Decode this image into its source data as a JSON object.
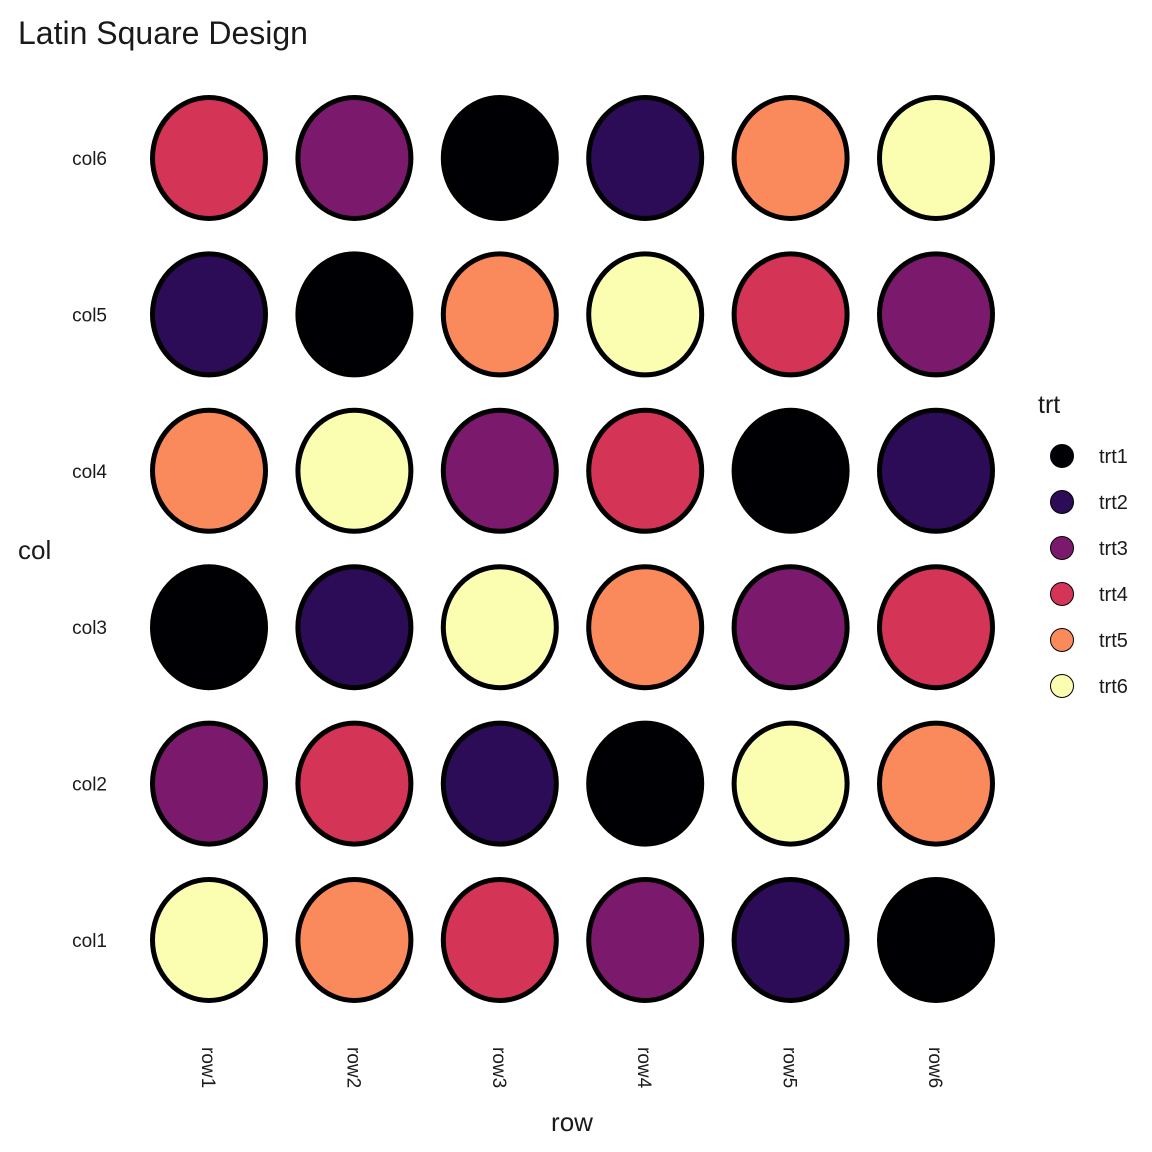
{
  "chart_data": {
    "type": "scatter",
    "title": "Latin Square Design",
    "xlabel": "row",
    "ylabel": "col",
    "x_categories": [
      "row1",
      "row2",
      "row3",
      "row4",
      "row5",
      "row6"
    ],
    "y_categories": [
      "col1",
      "col2",
      "col3",
      "col4",
      "col5",
      "col6"
    ],
    "grid": false,
    "legend": {
      "title": "trt",
      "position": "right",
      "entries": [
        {
          "label": "trt1",
          "color": "#000004"
        },
        {
          "label": "trt2",
          "color": "#2c0b57"
        },
        {
          "label": "trt3",
          "color": "#7b1a6c"
        },
        {
          "label": "trt4",
          "color": "#d43456"
        },
        {
          "label": "trt5",
          "color": "#fa8a5c"
        },
        {
          "label": "trt6",
          "color": "#fbfdb0"
        }
      ]
    },
    "points": [
      {
        "row": "row1",
        "col": "col1",
        "trt": "trt6"
      },
      {
        "row": "row2",
        "col": "col1",
        "trt": "trt5"
      },
      {
        "row": "row3",
        "col": "col1",
        "trt": "trt4"
      },
      {
        "row": "row4",
        "col": "col1",
        "trt": "trt3"
      },
      {
        "row": "row5",
        "col": "col1",
        "trt": "trt2"
      },
      {
        "row": "row6",
        "col": "col1",
        "trt": "trt1"
      },
      {
        "row": "row1",
        "col": "col2",
        "trt": "trt3"
      },
      {
        "row": "row2",
        "col": "col2",
        "trt": "trt4"
      },
      {
        "row": "row3",
        "col": "col2",
        "trt": "trt2"
      },
      {
        "row": "row4",
        "col": "col2",
        "trt": "trt1"
      },
      {
        "row": "row5",
        "col": "col2",
        "trt": "trt6"
      },
      {
        "row": "row6",
        "col": "col2",
        "trt": "trt5"
      },
      {
        "row": "row1",
        "col": "col3",
        "trt": "trt1"
      },
      {
        "row": "row2",
        "col": "col3",
        "trt": "trt2"
      },
      {
        "row": "row3",
        "col": "col3",
        "trt": "trt6"
      },
      {
        "row": "row4",
        "col": "col3",
        "trt": "trt5"
      },
      {
        "row": "row5",
        "col": "col3",
        "trt": "trt3"
      },
      {
        "row": "row6",
        "col": "col3",
        "trt": "trt4"
      },
      {
        "row": "row1",
        "col": "col4",
        "trt": "trt5"
      },
      {
        "row": "row2",
        "col": "col4",
        "trt": "trt6"
      },
      {
        "row": "row3",
        "col": "col4",
        "trt": "trt3"
      },
      {
        "row": "row4",
        "col": "col4",
        "trt": "trt4"
      },
      {
        "row": "row5",
        "col": "col4",
        "trt": "trt1"
      },
      {
        "row": "row6",
        "col": "col4",
        "trt": "trt2"
      },
      {
        "row": "row1",
        "col": "col5",
        "trt": "trt2"
      },
      {
        "row": "row2",
        "col": "col5",
        "trt": "trt1"
      },
      {
        "row": "row3",
        "col": "col5",
        "trt": "trt5"
      },
      {
        "row": "row4",
        "col": "col5",
        "trt": "trt6"
      },
      {
        "row": "row5",
        "col": "col5",
        "trt": "trt4"
      },
      {
        "row": "row6",
        "col": "col5",
        "trt": "trt3"
      },
      {
        "row": "row1",
        "col": "col6",
        "trt": "trt4"
      },
      {
        "row": "row2",
        "col": "col6",
        "trt": "trt3"
      },
      {
        "row": "row3",
        "col": "col6",
        "trt": "trt1"
      },
      {
        "row": "row4",
        "col": "col6",
        "trt": "trt2"
      },
      {
        "row": "row5",
        "col": "col6",
        "trt": "trt5"
      },
      {
        "row": "row6",
        "col": "col6",
        "trt": "trt6"
      }
    ]
  }
}
